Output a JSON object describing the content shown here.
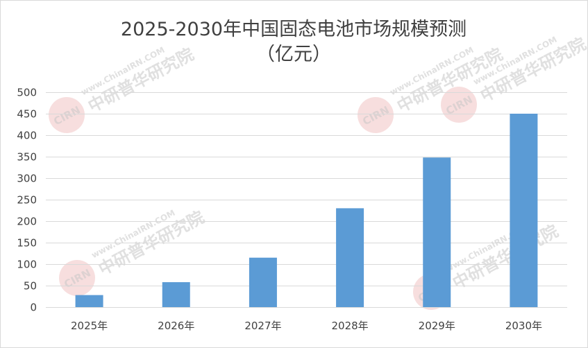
{
  "chart_data": {
    "type": "bar",
    "title": "2025-2030年中国固态电池市场规模预测",
    "subtitle": "（亿元）",
    "categories": [
      "2025年",
      "2026年",
      "2027年",
      "2028年",
      "2029年",
      "2030年"
    ],
    "values": [
      28,
      58,
      115,
      230,
      348,
      450
    ],
    "ylim": [
      0,
      500
    ],
    "yticks": [
      0,
      50,
      100,
      150,
      200,
      250,
      300,
      350,
      400,
      450,
      500
    ],
    "ytick_labels": [
      "0",
      "50",
      "100",
      "150",
      "200",
      "250",
      "300",
      "350",
      "400",
      "450",
      "500"
    ],
    "xlabel": "",
    "ylabel": "",
    "grid": true,
    "legend": "none",
    "bar_color": "#5b9bd5"
  },
  "watermark": {
    "logo_text": "CIRN",
    "site_text": "www.ChinaIRN.COM",
    "org_text": "中研普华研究院",
    "color": "#e8a0a0"
  }
}
